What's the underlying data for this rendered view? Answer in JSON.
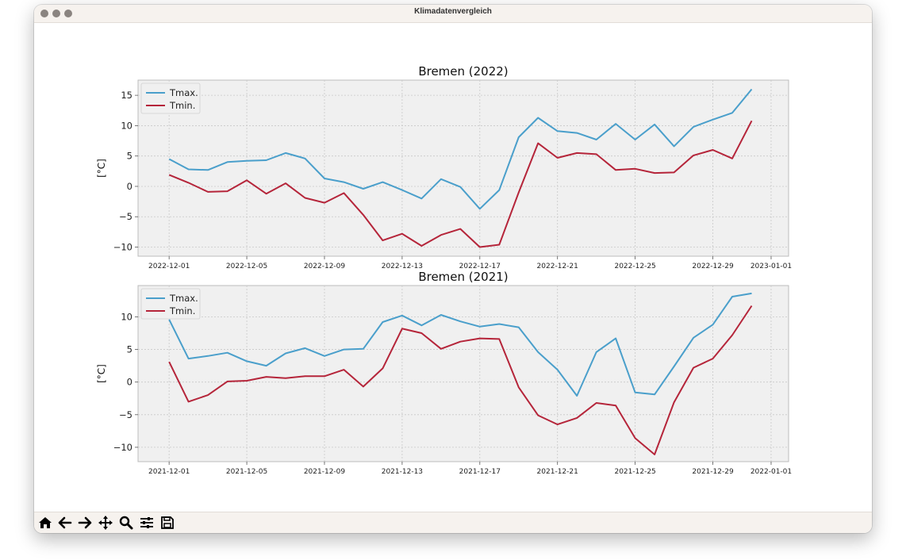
{
  "window": {
    "title": "Klimadatenvergleich"
  },
  "toolbar": {
    "buttons": [
      {
        "name": "home-icon"
      },
      {
        "name": "back-arrow-icon"
      },
      {
        "name": "forward-arrow-icon"
      },
      {
        "name": "pan-move-icon"
      },
      {
        "name": "zoom-magnifier-icon"
      },
      {
        "name": "configure-sliders-icon"
      },
      {
        "name": "save-floppy-icon"
      }
    ]
  },
  "chart_data": [
    {
      "type": "line",
      "title": "Bremen (2022)",
      "ylabel": "[°C]",
      "xlabel": "",
      "x_start": "2022-12-01",
      "x_ticks": [
        "2022-12-01",
        "2022-12-05",
        "2022-12-09",
        "2022-12-13",
        "2022-12-17",
        "2022-12-21",
        "2022-12-25",
        "2022-12-29",
        "2023-01-01"
      ],
      "y_ticks": [
        "15",
        "10",
        "5",
        "0",
        "−5",
        "−10"
      ],
      "ylim": [
        -11.5,
        17.5
      ],
      "grid": true,
      "legend": "top-left",
      "series": [
        {
          "name": "Tmax.",
          "color": "#4a9fcb",
          "values": [
            4.5,
            2.8,
            2.7,
            4.0,
            4.2,
            4.3,
            5.5,
            4.6,
            1.3,
            0.7,
            -0.4,
            0.7,
            -0.6,
            -2.0,
            1.2,
            -0.1,
            -3.7,
            -0.6,
            8.1,
            11.3,
            9.1,
            8.8,
            7.7,
            10.3,
            7.7,
            10.2,
            6.6,
            9.8,
            11.0,
            12.1,
            16.0
          ]
        },
        {
          "name": "Tmin.",
          "color": "#b5253a",
          "values": [
            1.9,
            0.6,
            -0.9,
            -0.8,
            1.0,
            -1.2,
            0.5,
            -1.9,
            -2.7,
            -1.1,
            -4.7,
            -8.9,
            -7.8,
            -9.8,
            -8.0,
            -7.0,
            -10.0,
            -9.6,
            -1.0,
            7.1,
            4.7,
            5.5,
            5.3,
            2.7,
            2.9,
            2.2,
            2.3,
            5.1,
            6.0,
            4.6,
            10.8
          ]
        }
      ]
    },
    {
      "type": "line",
      "title": "Bremen (2021)",
      "ylabel": "[°C]",
      "xlabel": "",
      "x_start": "2021-12-01",
      "x_ticks": [
        "2021-12-01",
        "2021-12-05",
        "2021-12-09",
        "2021-12-13",
        "2021-12-17",
        "2021-12-21",
        "2021-12-25",
        "2021-12-29",
        "2022-01-01"
      ],
      "y_ticks": [
        "10",
        "5",
        "0",
        "−5",
        "−10"
      ],
      "ylim": [
        -12.2,
        14.8
      ],
      "grid": true,
      "legend": "top-left",
      "series": [
        {
          "name": "Tmax.",
          "color": "#4a9fcb",
          "values": [
            9.6,
            3.6,
            4.0,
            4.5,
            3.2,
            2.5,
            4.4,
            5.2,
            4.0,
            5.0,
            5.1,
            9.2,
            10.2,
            8.7,
            10.3,
            9.3,
            8.5,
            8.9,
            8.4,
            4.6,
            1.9,
            -2.1,
            4.6,
            6.7,
            -1.6,
            -1.9,
            2.4,
            6.8,
            8.8,
            13.1,
            13.6
          ]
        },
        {
          "name": "Tmin.",
          "color": "#b5253a",
          "values": [
            3.1,
            -3.0,
            -2.0,
            0.1,
            0.2,
            0.8,
            0.6,
            0.9,
            0.9,
            1.9,
            -0.7,
            2.1,
            8.2,
            7.5,
            5.1,
            6.2,
            6.7,
            6.6,
            -0.8,
            -5.1,
            -6.5,
            -5.5,
            -3.2,
            -3.6,
            -8.6,
            -11.1,
            -3.1,
            2.2,
            3.6,
            7.2,
            11.7
          ]
        }
      ]
    }
  ]
}
